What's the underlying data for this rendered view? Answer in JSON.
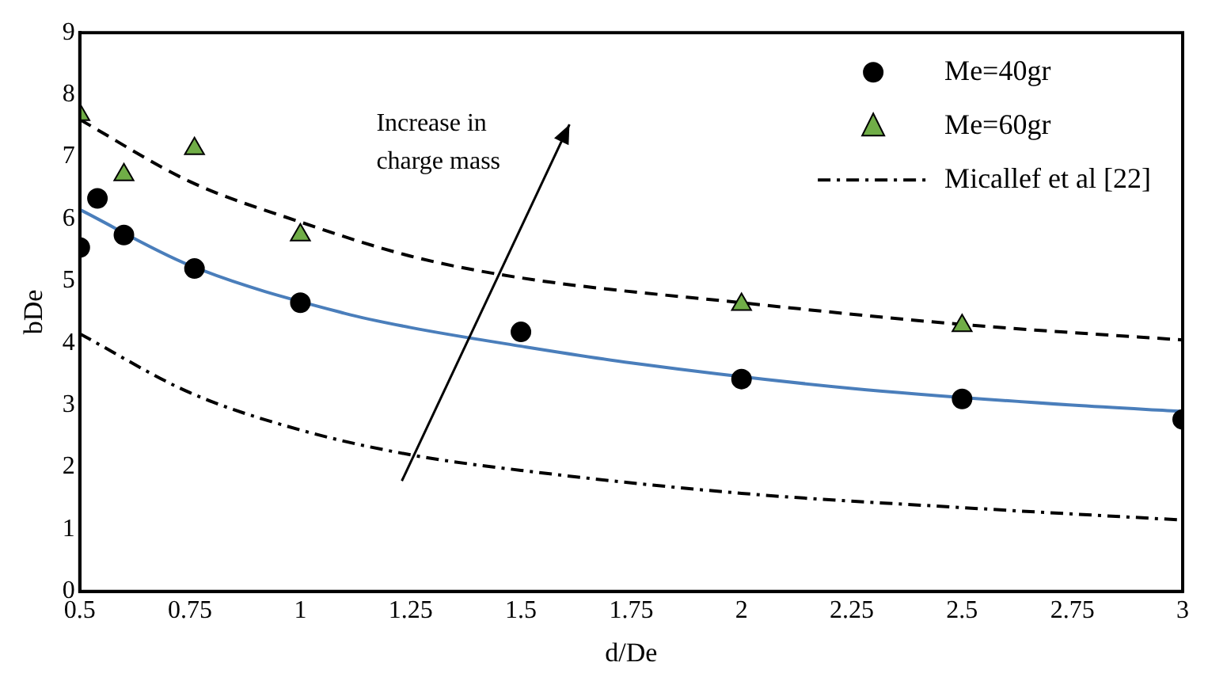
{
  "chart_data": {
    "type": "scatter",
    "xlabel": "d/De",
    "ylabel": "bDe",
    "xlim": [
      0.5,
      3
    ],
    "xticks": [
      0.5,
      0.75,
      1,
      1.25,
      1.5,
      1.75,
      2,
      2.25,
      2.5,
      2.75,
      3
    ],
    "ylim": [
      0,
      9
    ],
    "yticks": [
      0,
      1,
      2,
      3,
      4,
      5,
      6,
      7,
      8,
      9
    ],
    "grid": false,
    "legend": "top right",
    "annotations": [
      "Increase in charge mass"
    ],
    "series": [
      {
        "name": "Me=40gr",
        "type": "scatter",
        "marker": "circle",
        "color": "#000000",
        "x": [
          0.5,
          0.54,
          0.6,
          0.76,
          1.0,
          1.5,
          2.0,
          2.5,
          3.0
        ],
        "values": [
          5.54,
          6.33,
          5.74,
          5.2,
          4.65,
          4.18,
          3.42,
          3.1,
          2.77
        ]
      },
      {
        "name": "Me=60gr",
        "type": "scatter",
        "marker": "triangle",
        "color": "#70ad47",
        "x": [
          0.5,
          0.6,
          0.76,
          1.0,
          2.0,
          2.5
        ],
        "values": [
          7.68,
          6.71,
          7.13,
          5.74,
          4.62,
          4.28
        ]
      },
      {
        "name": "Micallef et al [22]",
        "type": "line",
        "marker": "none",
        "line_style": "dashdot",
        "color": "#000000",
        "x": [
          0.5,
          0.75,
          1,
          1.25,
          1.5,
          2,
          2.5,
          3
        ],
        "values": [
          4.15,
          3.2,
          2.6,
          2.2,
          1.95,
          1.58,
          1.35,
          1.15
        ]
      },
      {
        "type": "line",
        "marker": "none",
        "line_style": "solid",
        "color": "#4a7ebb",
        "x": [
          0.5,
          0.75,
          1.1,
          1.25,
          1.5,
          1.75,
          2.25,
          2.75,
          3
        ],
        "values": [
          6.15,
          5.25,
          4.48,
          4.25,
          3.95,
          3.68,
          3.27,
          3.0,
          2.9
        ]
      },
      {
        "type": "line",
        "marker": "none",
        "line_style": "dashed",
        "color": "#000000",
        "x": [
          0.5,
          0.75,
          1,
          1.25,
          1.5,
          2,
          2.5,
          3
        ],
        "values": [
          7.6,
          6.6,
          5.95,
          5.4,
          5.05,
          4.65,
          4.3,
          4.05
        ]
      }
    ]
  }
}
